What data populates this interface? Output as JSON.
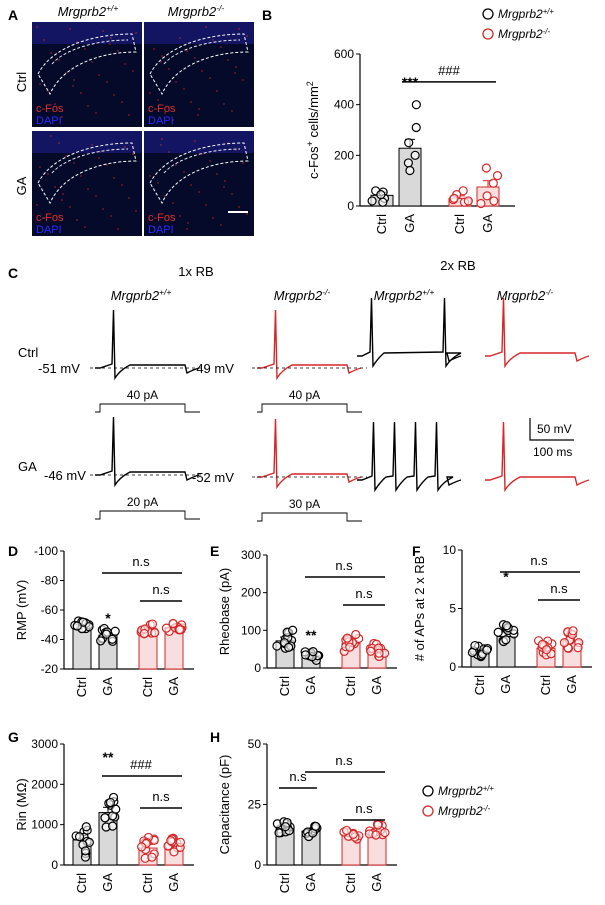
{
  "panel_labels": {
    "A": "A",
    "B": "B",
    "C": "C",
    "D": "D",
    "E": "E",
    "F": "F",
    "G": "G",
    "H": "H"
  },
  "genotypes": {
    "wt": "Mrgprb2+/+",
    "ko": "Mrgprb2-/-"
  },
  "colors": {
    "wt": "#000000",
    "ko": "#d62728",
    "wt_bar": "#d9d9d9",
    "ko_bar": "#f8dede",
    "fos": "#e0302a",
    "dapi": "#2a2aff",
    "micro_bg": "#050a2a"
  },
  "micrographs": {
    "row_labels": [
      "Ctrl",
      "GA"
    ],
    "fos_label": "c-Fos",
    "dapi_label": "DAPI",
    "scale_bar": ""
  },
  "traces": {
    "rb1_label": "1x RB",
    "rb2_label": "2x RB",
    "row_labels": [
      "Ctrl",
      "GA"
    ],
    "rmp": [
      "-51 mV",
      "-49 mV",
      "-46 mV",
      "-52 mV"
    ],
    "currents": [
      "40 pA",
      "40 pA",
      "20 pA",
      "30 pA"
    ],
    "scale_v": "50 mV",
    "scale_t": "100 ms"
  },
  "legend": {
    "wt": "Mrgprb2+/+",
    "ko": "Mrgprb2-/-"
  },
  "chart_data": [
    {
      "id": "B",
      "type": "bar",
      "ylabel": "c-Fos+ cells/mm2",
      "ylim": [
        0,
        600
      ],
      "yticks": [
        0,
        200,
        400,
        600
      ],
      "categories": [
        "Ctrl",
        "GA",
        "Ctrl",
        "GA"
      ],
      "values": [
        42,
        228,
        30,
        75
      ],
      "sem": [
        12,
        35,
        10,
        25
      ],
      "points": [
        [
          20,
          55,
          30,
          15,
          60,
          45
        ],
        [
          400,
          310,
          250,
          200,
          170,
          140
        ],
        [
          60,
          45,
          25,
          15,
          30,
          20
        ],
        [
          150,
          120,
          90,
          40,
          20,
          10
        ]
      ],
      "annotations": [
        "***"
      ],
      "brackets": [
        "###"
      ]
    },
    {
      "id": "D",
      "type": "bar",
      "ylabel": "RMP (mV)",
      "ylim": [
        -20,
        -100
      ],
      "yticks": [
        -20,
        -40,
        -60,
        -80,
        -100
      ],
      "categories": [
        "Ctrl",
        "GA",
        "Ctrl",
        "GA"
      ],
      "values": [
        -50,
        -43,
        -47,
        -48
      ],
      "sem": [
        1,
        1.5,
        1.2,
        1
      ],
      "annotations": [
        "*"
      ],
      "brackets": [
        "n.s",
        "n.s"
      ]
    },
    {
      "id": "E",
      "type": "bar",
      "ylabel": "Rheobase (pA)",
      "ylim": [
        0,
        300
      ],
      "yticks": [
        0,
        100,
        200,
        300
      ],
      "categories": [
        "Ctrl",
        "GA",
        "Ctrl",
        "GA"
      ],
      "values": [
        72,
        33,
        65,
        48
      ],
      "sem": [
        10,
        5,
        9,
        6
      ],
      "annotations": [
        "**"
      ],
      "brackets": [
        "n.s",
        "n.s"
      ]
    },
    {
      "id": "F",
      "type": "bar",
      "ylabel": "# of APs at 2 x RB",
      "ylim": [
        0,
        10
      ],
      "yticks": [
        0,
        5,
        10
      ],
      "categories": [
        "Ctrl",
        "GA",
        "Ctrl",
        "GA"
      ],
      "values": [
        1.3,
        2.6,
        1.6,
        2.3
      ],
      "sem": [
        0.2,
        0.4,
        0.3,
        0.3
      ],
      "annotations": [
        "*"
      ],
      "brackets": [
        "n.s",
        "n.s"
      ]
    },
    {
      "id": "G",
      "type": "bar",
      "ylabel": "Rin (MΩ)",
      "ylim": [
        0,
        3000
      ],
      "yticks": [
        0,
        1000,
        2000,
        3000
      ],
      "categories": [
        "Ctrl",
        "GA",
        "Ctrl",
        "GA"
      ],
      "values": [
        620,
        1300,
        420,
        500
      ],
      "sem": [
        150,
        130,
        90,
        60
      ],
      "annotations": [
        "**"
      ],
      "brackets": [
        "###",
        "n.s"
      ]
    },
    {
      "id": "H",
      "type": "bar",
      "ylabel": "Capacitance (pF)",
      "ylim": [
        0,
        50
      ],
      "yticks": [
        0,
        25,
        50
      ],
      "categories": [
        "Ctrl",
        "GA",
        "Ctrl",
        "GA"
      ],
      "values": [
        15,
        14,
        12.5,
        14.5
      ],
      "sem": [
        1,
        0.8,
        0.6,
        0.8
      ],
      "brackets": [
        "n.s",
        "n.s",
        "n.s"
      ]
    }
  ]
}
